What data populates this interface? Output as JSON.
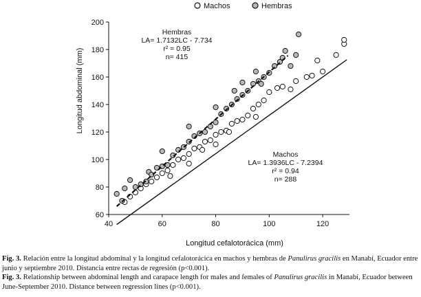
{
  "chart_data": {
    "type": "scatter",
    "xlabel": "Longitud cefalotorácica (mm)",
    "ylabel": "Longitud abdominal (mm)",
    "xlim": [
      40,
      130
    ],
    "ylim": [
      60,
      200
    ],
    "x_ticks": [
      40,
      60,
      80,
      100,
      120
    ],
    "y_ticks": [
      60,
      80,
      100,
      120,
      140,
      160,
      180,
      200
    ],
    "grid": false,
    "legend": {
      "placement": "top",
      "entries": [
        "Machos",
        "Hembras"
      ]
    },
    "series": [
      {
        "name": "Machos",
        "marker": "open-circle",
        "fit": {
          "slope": 1.3936,
          "intercept": -7.2394,
          "x_range": [
            43,
            129
          ],
          "line_style": "solid"
        },
        "points": [
          [
            46,
            69
          ],
          [
            48,
            73
          ],
          [
            50,
            76
          ],
          [
            52,
            79
          ],
          [
            54,
            82
          ],
          [
            56,
            84
          ],
          [
            58,
            87
          ],
          [
            60,
            90
          ],
          [
            62,
            92
          ],
          [
            64,
            96
          ],
          [
            66,
            100
          ],
          [
            68,
            101
          ],
          [
            70,
            104
          ],
          [
            72,
            108
          ],
          [
            74,
            109
          ],
          [
            76,
            113
          ],
          [
            78,
            114
          ],
          [
            80,
            118
          ],
          [
            82,
            120
          ],
          [
            84,
            121
          ],
          [
            86,
            126
          ],
          [
            88,
            128
          ],
          [
            90,
            129
          ],
          [
            92,
            132
          ],
          [
            94,
            137
          ],
          [
            96,
            140
          ],
          [
            98,
            143
          ],
          [
            100,
            149
          ],
          [
            103,
            152
          ],
          [
            105,
            153
          ],
          [
            108,
            151
          ],
          [
            110,
            157
          ],
          [
            114,
            160
          ],
          [
            116,
            161
          ],
          [
            118,
            172
          ],
          [
            120,
            164
          ],
          [
            125,
            176
          ],
          [
            128,
            184
          ],
          [
            128,
            187
          ],
          [
            75,
            107
          ],
          [
            85,
            120
          ],
          [
            95,
            131
          ],
          [
            63,
            88
          ],
          [
            70,
            97
          ],
          [
            80,
            111
          ]
        ]
      },
      {
        "name": "Hembras",
        "marker": "grey-circle",
        "fit": {
          "slope": 1.7132,
          "intercept": -7.734,
          "x_range": [
            43,
            107
          ],
          "line_style": "dashed"
        },
        "points": [
          [
            43,
            75
          ],
          [
            45,
            70
          ],
          [
            46,
            79
          ],
          [
            48,
            85
          ],
          [
            50,
            80
          ],
          [
            52,
            82
          ],
          [
            54,
            84
          ],
          [
            55,
            91
          ],
          [
            56,
            89
          ],
          [
            58,
            94
          ],
          [
            60,
            95
          ],
          [
            62,
            96
          ],
          [
            64,
            103
          ],
          [
            66,
            107
          ],
          [
            68,
            109
          ],
          [
            70,
            113
          ],
          [
            72,
            117
          ],
          [
            74,
            119
          ],
          [
            76,
            120
          ],
          [
            78,
            124
          ],
          [
            80,
            127
          ],
          [
            82,
            133
          ],
          [
            84,
            137
          ],
          [
            86,
            140
          ],
          [
            88,
            144
          ],
          [
            90,
            147
          ],
          [
            92,
            150
          ],
          [
            94,
            155
          ],
          [
            96,
            157
          ],
          [
            98,
            160
          ],
          [
            100,
            163
          ],
          [
            102,
            168
          ],
          [
            104,
            171
          ],
          [
            105,
            174
          ],
          [
            106,
            179
          ],
          [
            108,
            168
          ],
          [
            110,
            176
          ],
          [
            111,
            191
          ],
          [
            60,
            106
          ],
          [
            70,
            124
          ],
          [
            80,
            138
          ],
          [
            90,
            156
          ],
          [
            95,
            164
          ],
          [
            87,
            150
          ],
          [
            97,
            155
          ]
        ]
      }
    ],
    "annotations": [
      {
        "series": "Hembras",
        "lines": [
          "Hembras",
          "LA= 1.7132LC - 7.734",
          "r² = 0.95",
          "n= 415"
        ]
      },
      {
        "series": "Machos",
        "lines": [
          "Machos",
          "LA= 1.3936LC - 7.2394",
          "r² = 0.94",
          "n= 288"
        ]
      }
    ]
  },
  "caption": {
    "es": {
      "label": "Fig. 3.",
      "text_before": "Relación entre la longitud abdominal y la longitud cefalotorácica en machos y hembras de",
      "species": "Panulirus gracilis",
      "text_after": "en Manabí, Ecuador entre junio y septiembre 2010. Distancia entre rectas de regresión (p<0.001)."
    },
    "en": {
      "label": "Fig. 3.",
      "text_before": "Relationship between abdominal length and carapace length for males and females of",
      "species": "Panulirus gracilis",
      "text_after": "in Manabí, Ecuador between June-September 2010. Distance between regression lines (p<0.001)."
    }
  },
  "colors": {
    "axis": "#111111",
    "machos_fill": "#ffffff",
    "hembras_fill": "#b8b8b8",
    "marker_stroke": "#111111"
  }
}
